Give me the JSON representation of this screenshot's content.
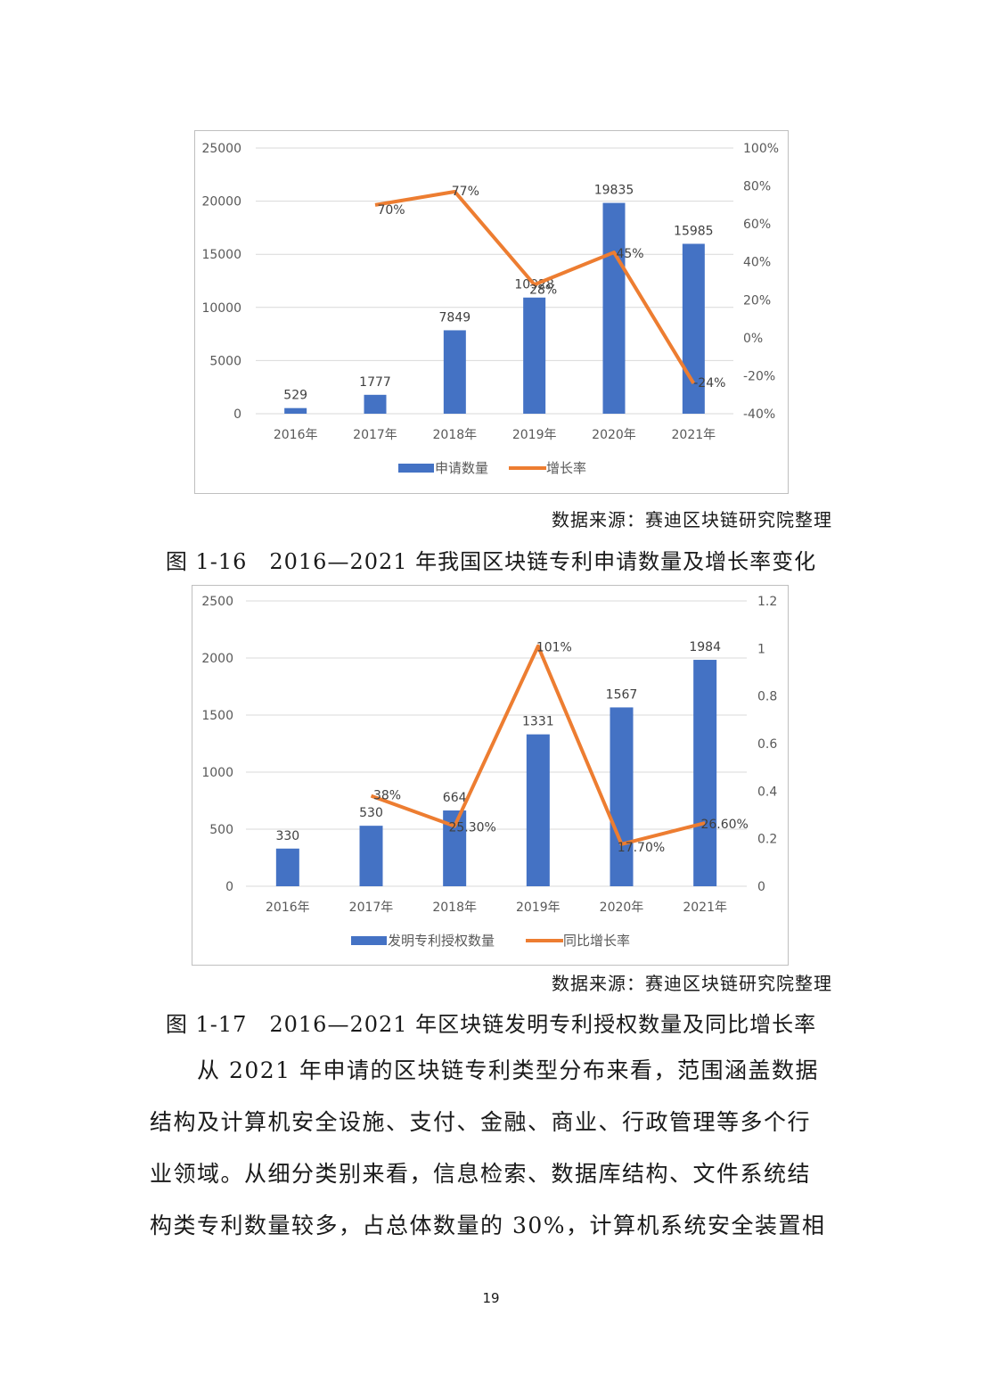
{
  "charts": [
    {
      "type": "bar+line",
      "categories": [
        "2016年",
        "2017年",
        "2018年",
        "2019年",
        "2020年",
        "2021年"
      ],
      "bar": {
        "name": "申请数量",
        "values": [
          529,
          1777,
          7849,
          10928,
          19835,
          15985
        ],
        "labels": [
          "529",
          "1777",
          "7849",
          "10928",
          "19835",
          "15985"
        ],
        "color": "#4472c4"
      },
      "line": {
        "name": "增长率",
        "values": [
          null,
          70,
          77,
          28,
          45,
          -24
        ],
        "labels": [
          "",
          "70%",
          "77%",
          "28%",
          "45%",
          "-24%"
        ],
        "color": "#ed7d31"
      },
      "y_left": {
        "min": 0,
        "max": 25000,
        "ticks": [
          "0",
          "5000",
          "10000",
          "15000",
          "20000",
          "25000"
        ]
      },
      "y_right": {
        "min": -40,
        "max": 100,
        "ticks": [
          "-40%",
          "-20%",
          "0%",
          "20%",
          "40%",
          "60%",
          "80%",
          "100%"
        ]
      },
      "legend_position": "bottom",
      "grid": true
    },
    {
      "type": "bar+line",
      "categories": [
        "2016年",
        "2017年",
        "2018年",
        "2019年",
        "2020年",
        "2021年"
      ],
      "bar": {
        "name": "发明专利授权数量",
        "values": [
          330,
          530,
          664,
          1331,
          1567,
          1984
        ],
        "labels": [
          "330",
          "530",
          "664",
          "1331",
          "1567",
          "1984"
        ],
        "color": "#4472c4"
      },
      "line": {
        "name": "同比增长率",
        "values": [
          null,
          0.38,
          0.253,
          1.01,
          0.177,
          0.266
        ],
        "labels": [
          "",
          "38%",
          "25.30%",
          "101%",
          "17.70%",
          "26.60%"
        ],
        "color": "#ed7d31"
      },
      "y_left": {
        "min": 0,
        "max": 2500,
        "ticks": [
          "0",
          "500",
          "1000",
          "1500",
          "2000",
          "2500"
        ]
      },
      "y_right": {
        "min": 0,
        "max": 1.2,
        "ticks": [
          "0",
          "0.2",
          "0.4",
          "0.6",
          "0.8",
          "1",
          "1.2"
        ]
      },
      "legend_position": "bottom",
      "grid": true
    }
  ],
  "fig16": {
    "source": "数据来源：赛迪区块链研究院整理",
    "caption": "图 1-16　2016—2021 年我国区块链专利申请数量及增长率变化"
  },
  "fig17": {
    "source": "数据来源：赛迪区块链研究院整理",
    "caption": "图 1-17　2016—2021 年区块链发明专利授权数量及同比增长率"
  },
  "body_lines": [
    "　　从 2021 年申请的区块链专利类型分布来看，范围涵盖数据",
    "结构及计算机安全设施、支付、金融、商业、行政管理等多个行",
    "业领域。从细分类别来看，信息检索、数据库结构、文件系统结",
    "构类专利数量较多，占总体数量的 30%，计算机系统安全装置相"
  ],
  "page_number": "19"
}
